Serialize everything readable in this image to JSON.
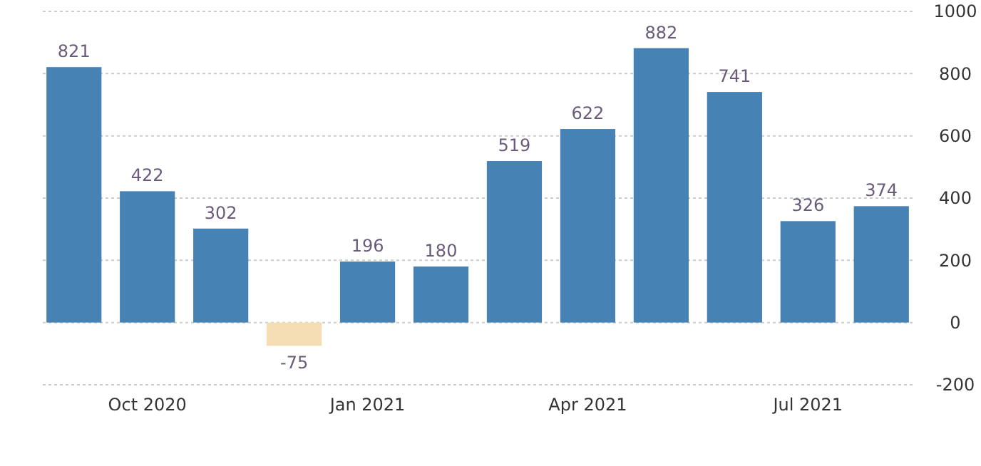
{
  "chart_data": {
    "type": "bar",
    "categories": [
      null,
      "Oct 2020",
      null,
      null,
      "Jan 2021",
      null,
      null,
      "Apr 2021",
      null,
      null,
      "Jul 2021",
      null
    ],
    "values": [
      821,
      422,
      302,
      -75,
      196,
      180,
      519,
      622,
      882,
      741,
      326,
      374
    ],
    "colors": [
      "#4682b4",
      "#4682b4",
      "#4682b4",
      "#f5deb3",
      "#4682b4",
      "#4682b4",
      "#4682b4",
      "#4682b4",
      "#4682b4",
      "#4682b4",
      "#4682b4",
      "#4682b4"
    ],
    "ylim": [
      -200,
      1000
    ],
    "yticks": [
      -200,
      0,
      200,
      400,
      600,
      800,
      1000
    ],
    "grid": "y",
    "data_labels": true
  }
}
